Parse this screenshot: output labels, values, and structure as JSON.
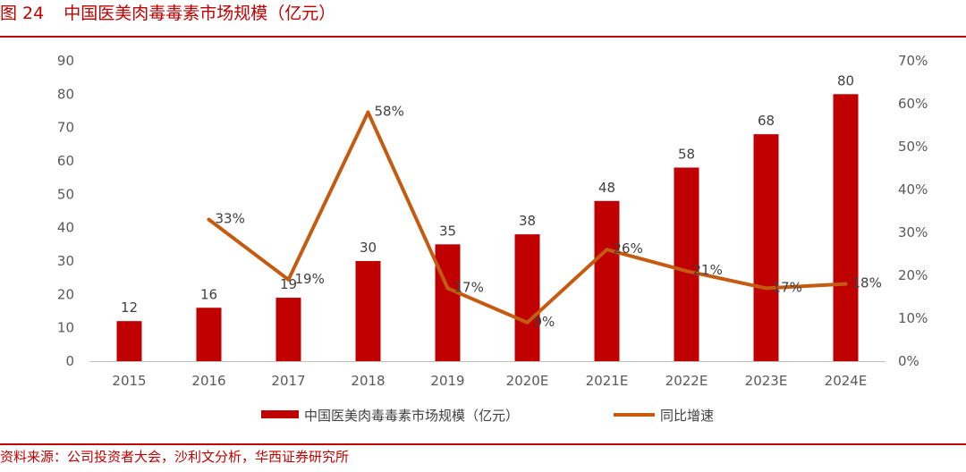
{
  "figure": {
    "number": "图 24",
    "title": "中国医美肉毒毒素市场规模（亿元）"
  },
  "source": "资料来源：公司投资者大会，沙利文分析，华西证券研究所",
  "chart_data": {
    "type": "bar",
    "categories": [
      "2015",
      "2016",
      "2017",
      "2018",
      "2019",
      "2020E",
      "2021E",
      "2022E",
      "2023E",
      "2024E"
    ],
    "series": [
      {
        "name": "中国医美肉毒毒素市场规模（亿元）",
        "type": "bar",
        "axis": "left",
        "color": "#c00000",
        "values": [
          12,
          16,
          19,
          30,
          35,
          38,
          48,
          58,
          68,
          80
        ],
        "labels": [
          "12",
          "16",
          "19",
          "30",
          "35",
          "38",
          "48",
          "58",
          "68",
          "80"
        ]
      },
      {
        "name": "同比增速",
        "type": "line",
        "axis": "right",
        "color": "#c55a11",
        "values": [
          null,
          33,
          19,
          58,
          17,
          9,
          26,
          21,
          17,
          18
        ],
        "labels": [
          "",
          "33%",
          "19%",
          "58%",
          "17%",
          "9%",
          "26%",
          "21%",
          "17%",
          "18%"
        ]
      }
    ],
    "y_left": {
      "min": 0,
      "max": 90,
      "step": 10,
      "ticks": [
        "0",
        "10",
        "20",
        "30",
        "40",
        "50",
        "60",
        "70",
        "80",
        "90"
      ]
    },
    "y_right": {
      "min": 0,
      "max": 70,
      "step": 10,
      "ticks": [
        "0%",
        "10%",
        "20%",
        "30%",
        "40%",
        "50%",
        "60%",
        "70%"
      ]
    },
    "grid": false,
    "legend": "bottom"
  }
}
